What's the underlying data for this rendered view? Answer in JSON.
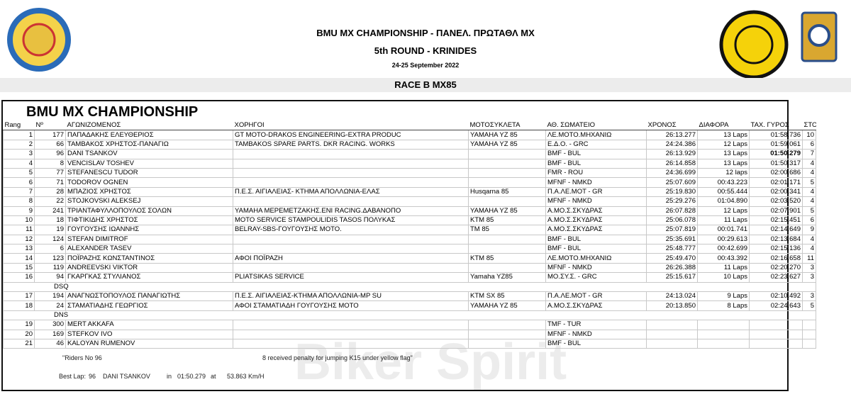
{
  "header": {
    "title": "BMU MX CHAMPIONSHIP - ΠΑΝΕΛ. ΠΡΩΤΑΘΛ ΜΧ",
    "round": "5th ROUND - KRINIDES",
    "date": "24-25 September 2022",
    "race": "RACE B MX85"
  },
  "table": {
    "title": "BMU MX CHAMPIONSHIP",
    "columns": [
      "Rang",
      "Nº",
      "ΑΓΩΝΙΖΟΜΕΝΟΣ",
      "ΧΟΡΗΓΟΙ",
      "ΜΟΤΟΣΥΚΛΕΤΑ",
      "ΑΘ. ΣΩΜΑΤΕΙΟ",
      "ΧΡΟΝΟΣ",
      "ΔΙΑΦΟΡΑ",
      "ΤΑΧ. ΓΥΡΟΣ",
      "ΣΤΟΝ"
    ],
    "rows": [
      {
        "rank": "1",
        "no": "177",
        "rider": "ΠΑΠΑΔΑΚΗΣ ΕΛΕΥΘΕΡΙΟΣ",
        "sponsor": "GT MOTO-DRAKOS ENGINEERING-EXTRA PRODUC",
        "bike": "YAMAHA YZ 85",
        "club": "ΛΕ.ΜΟΤΟ.ΜΗΧΑΝΙΩ",
        "time": "26:13.277",
        "diff": "13 Laps",
        "best": "01:58.736",
        "lap": "10"
      },
      {
        "rank": "2",
        "no": "66",
        "rider": "ΤΑΜΒΑΚΟΣ ΧΡΗΣΤΟΣ-ΠΑΝΑΓΙΩ",
        "sponsor": "TAMBAKOS SPARE PARTS. DKR RACING. WORKS",
        "bike": "YAMAHA YZ 85",
        "club": "Ε.Δ.Ο. - GRC",
        "time": "24:24.386",
        "diff": "12 Laps",
        "best": "01:59.061",
        "lap": "6"
      },
      {
        "rank": "3",
        "no": "96",
        "rider": "DANI TSANKOV",
        "club": "BMF - BUL",
        "time": "26:13.929",
        "diff": "13 Laps",
        "best": "01:50.279",
        "lap": "7",
        "bold_best": true
      },
      {
        "rank": "4",
        "no": "8",
        "rider": "VENCISLAV TOSHEV",
        "club": "BMF - BUL",
        "time": "26:14.858",
        "diff": "13 Laps",
        "best": "01:50.317",
        "lap": "4"
      },
      {
        "rank": "5",
        "no": "77",
        "rider": "STEFANESCU TUDOR",
        "club": "FMR - ROU",
        "time": "24:36.699",
        "diff": "12 laps",
        "best": "02:00.686",
        "lap": "4"
      },
      {
        "rank": "6",
        "no": "71",
        "rider": "TODOROV OGNEN",
        "club": "MFNF - NMKD",
        "time": "25:07.609",
        "diff": "00:43.223",
        "best": "02:01.171",
        "lap": "5"
      },
      {
        "rank": "7",
        "no": "28",
        "rider": "ΜΠΑΖΙΟΣ ΧΡΗΣΤΟΣ",
        "sponsor": "Π.Ε.Σ. ΑΙΓΙΑΛΕΙΑΣ- ΚΤΗΜΑ ΑΠΟΛΛΩΝΙΑ-ΕΛΑΣ",
        "bike": "Husqarna 85",
        "club": "Π.Α.ΛΕ.ΜΟΤ - GR",
        "time": "25:19.830",
        "diff": "00:55.444",
        "best": "02:00.341",
        "lap": "4"
      },
      {
        "rank": "8",
        "no": "22",
        "rider": "STOJKOVSKI ALEKSEJ",
        "club": "MFNF - NMKD",
        "time": "25:29.276",
        "diff": "01:04.890",
        "best": "02:03.520",
        "lap": "4"
      },
      {
        "rank": "9",
        "no": "241",
        "rider": "ΤΡΙΑΝΤΑΦΥΛΛΟΠΟΥΛΟΣ ΣΟΛΩΝ",
        "sponsor": "YAMAHA ΜΕΡΕΜΕΤΖΑΚΗΣ.ENI RACING.ΔΑΒΑΝΟΠΟ",
        "bike": "YAMAHA YZ 85",
        "club": "Α.ΜΟ.Σ.ΣΚΥΔΡΑΣ",
        "time": "26:07.828",
        "diff": "12 Laps",
        "best": "02:07.901",
        "lap": "5"
      },
      {
        "rank": "10",
        "no": "18",
        "rider": "ΤΙΦΤΙΚΙΔΗΣ ΧΡΗΣΤΟΣ",
        "sponsor": "MOTO SERVICE STAMPOULIDIS TASOS ΠΟΛΥΚΑΣ",
        "bike": "KTM 85",
        "club": "Α.ΜΟ.Σ.ΣΚΥΔΡΑΣ",
        "time": "25:06.078",
        "diff": "11 Laps",
        "best": "02:15.451",
        "lap": "6"
      },
      {
        "rank": "11",
        "no": "19",
        "rider": "ΓΟΥΓΟΥΣΗΣ ΙΩΑΝΝΗΣ",
        "sponsor": "BELRAY-SBS-ΓΟΥΓΟΥΣΗΣ ΜΟΤΟ.",
        "bike": "TM 85",
        "club": "Α.ΜΟ.Σ.ΣΚΥΔΡΑΣ",
        "time": "25:07.819",
        "diff": "00:01.741",
        "best": "02:14.649",
        "lap": "9"
      },
      {
        "rank": "12",
        "no": "124",
        "rider": "STEFAN DIMITROF",
        "club": "BMF - BUL",
        "time": "25:35.691",
        "diff": "00:29.613",
        "best": "02:13.684",
        "lap": "4"
      },
      {
        "rank": "13",
        "no": "6",
        "rider": "ALEXANDER TASEV",
        "club": "BMF - BUL",
        "time": "25:48.777",
        "diff": "00:42.699",
        "best": "02:15.136",
        "lap": "4"
      },
      {
        "rank": "14",
        "no": "123",
        "rider": "ΠΟΪΡΑΖΗΣ ΚΩΝΣΤΑΝΤΙΝΟΣ",
        "sponsor": "ΑΦΟΙ ΠΟΪΡΑΖΗ",
        "bike": "KTM 85",
        "club": "ΛΕ.ΜΟΤΟ.ΜΗΧΑΝΙΩ",
        "time": "25:49.470",
        "diff": "00:43.392",
        "best": "02:16.658",
        "lap": "11"
      },
      {
        "rank": "15",
        "no": "119",
        "rider": "ANDREEVSKI VIKTOR",
        "club": "MFNF - NMKD",
        "time": "26:26.388",
        "diff": "11 Laps",
        "best": "02:20.270",
        "lap": "3"
      },
      {
        "rank": "16",
        "no": "94",
        "rider": "ΓΚΑΡΓΚΑΣ ΣΤΥΛΙΑΝΟΣ",
        "sponsor": "PLIATSIKAS SERVICE",
        "bike": "Yamaha YZ85",
        "club": "ΜΟ.ΣΥ.Σ. - GRC",
        "time": "25:15.617",
        "diff": "10 Laps",
        "best": "02:23.627",
        "lap": "3"
      },
      {
        "section": "DSQ"
      },
      {
        "rank": "17",
        "no": "194",
        "rider": "ΑΝΑΓΝΩΣΤΟΠΟΥΛΟΣ ΠΑΝΑΓΙΩΤΗΣ",
        "sponsor": "Π.Ε.Σ. ΑΙΓΙΑΛΕΙΑΣ-ΚΤΗΜΑ ΑΠΟΛΛΩΝΙΑ-MP SU",
        "bike": "KTM SX 85",
        "club": "Π.Α.ΛΕ.ΜΟΤ - GR",
        "time": "24:13.024",
        "diff": "9 Laps",
        "best": "02:10.492",
        "lap": "3"
      },
      {
        "rank": "18",
        "no": "24",
        "rider": "ΣΤΑΜΑΤΙΑΔΗΣ ΓΕΩΡΓΙΟΣ",
        "sponsor": "ΑΦΟΙ ΣΤΑΜΑΤΙΑΔΗ ΓΟΥΓΟΥΣΗΣ ΜΟΤΟ",
        "bike": "YAMAHA YZ 85",
        "club": "Α.ΜΟ.Σ.ΣΚΥΔΡΑΣ",
        "time": "20:13.850",
        "diff": "8 Laps",
        "best": "02:24.643",
        "lap": "5"
      },
      {
        "section": "DNS"
      },
      {
        "rank": "19",
        "no": "300",
        "rider": "MERT AKKAFA",
        "club": "TMF - TUR"
      },
      {
        "rank": "20",
        "no": "169",
        "rider": "STEFKOV IVO",
        "club": "MFNF - NMKD"
      },
      {
        "rank": "21",
        "no": "46",
        "rider": "KALOYAN RUMENOV",
        "club": "BMF - BUL"
      }
    ]
  },
  "notes": {
    "riders": "\"Riders No 96",
    "penalty": "8 received penalty for jumping K15 under yellow flag\""
  },
  "best_lap": {
    "label": "Best Lap:",
    "no": "96",
    "rider": "DANI TSANKOV",
    "in": "in",
    "time": "01:50.279",
    "at": "at",
    "speed": "53.863 Km/H"
  },
  "watermark": "Biker Spirit"
}
